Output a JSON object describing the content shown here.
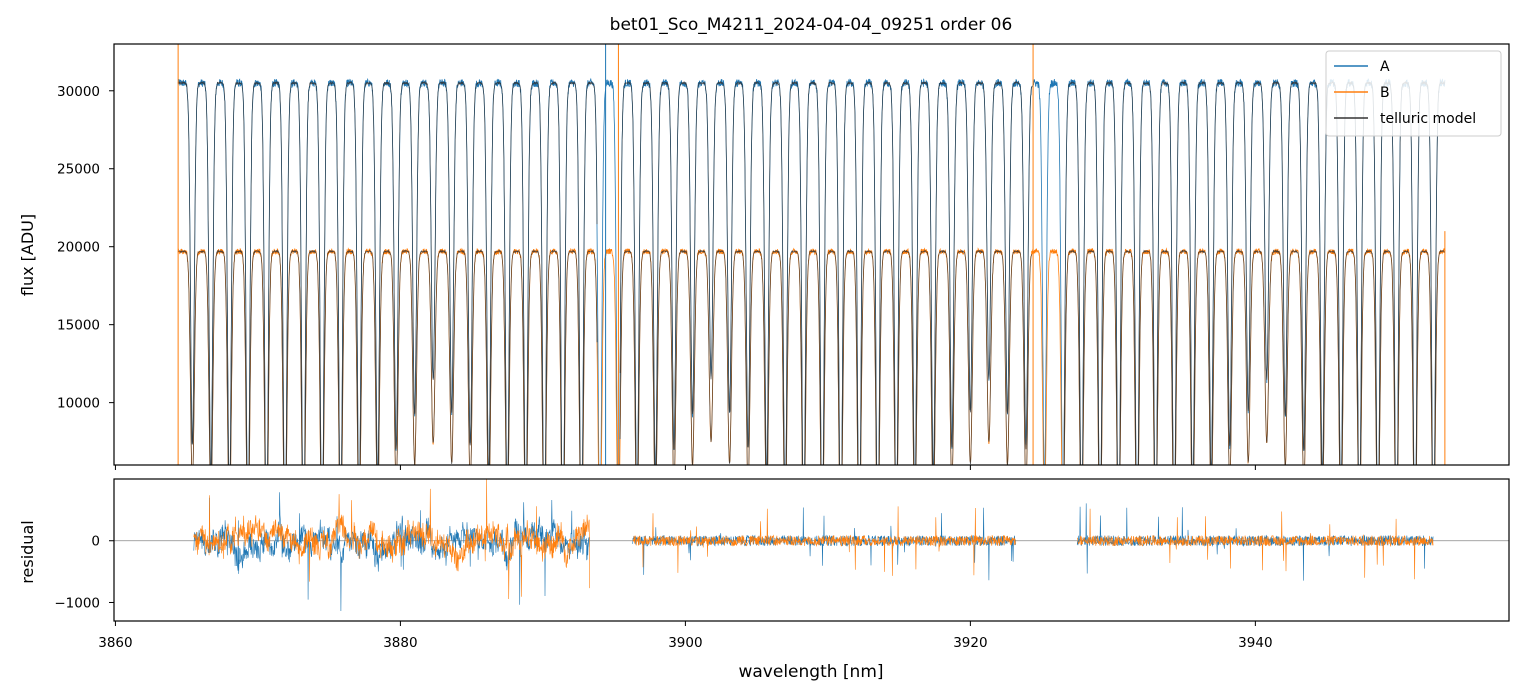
{
  "chart_data": [
    {
      "type": "line",
      "title": "bet01_Sco_M4211_2024-04-04_09251  order 06",
      "xlabel": "",
      "ylabel": "flux [ADU]",
      "xlim": [
        3859.9,
        3957.8
      ],
      "ylim": [
        6000,
        33000
      ],
      "x_ticks": [
        3860,
        3880,
        3900,
        3920,
        3940
      ],
      "y_ticks": [
        10000,
        15000,
        20000,
        25000,
        30000
      ],
      "y_tick_labels": [
        "10000",
        "15000",
        "20000",
        "25000",
        "30000"
      ],
      "legend": {
        "placement": "top-right",
        "entries": [
          "A",
          "B",
          "telluric model"
        ]
      },
      "series": [
        {
          "name": "A",
          "color": "#1f77b4",
          "continuum": 30500,
          "x_start": 3864.4,
          "x_end": 3953.3
        },
        {
          "name": "B",
          "color": "#ff7f0e",
          "continuum": 19700,
          "x_start": 3864.4,
          "x_end": 3953.3
        },
        {
          "name": "telluric model",
          "color": "#333333"
        }
      ],
      "model_gaps": [
        [
          3893.8,
          3895.4
        ],
        [
          3924.3,
          3926.5
        ]
      ],
      "spikes": [
        {
          "series": "B",
          "x": 3864.4,
          "ymin": 6000,
          "ymax": 33000
        },
        {
          "series": "A",
          "x": 3894.4,
          "ymin": 6000,
          "ymax": 33000
        },
        {
          "series": "B",
          "x": 3895.3,
          "ymin": 6000,
          "ymax": 33000
        },
        {
          "series": "B",
          "x": 3924.4,
          "ymin": 6000,
          "ymax": 33000
        },
        {
          "series": "B",
          "x": 3953.3,
          "ymin": 6000,
          "ymax": 21000
        }
      ]
    },
    {
      "type": "line",
      "title": "",
      "xlabel": "wavelength [nm]",
      "ylabel": "residual",
      "xlim": [
        3859.9,
        3957.8
      ],
      "ylim": [
        -1300,
        1000
      ],
      "x_ticks": [
        3860,
        3880,
        3900,
        3920,
        3940
      ],
      "x_tick_labels": [
        "3860",
        "3880",
        "3900",
        "3920",
        "3940"
      ],
      "y_ticks": [
        -1000,
        0
      ],
      "y_tick_labels": [
        "−1000",
        "0"
      ],
      "zero_line": true,
      "segments": [
        {
          "x_start": 3865.5,
          "x_end": 3893.3,
          "amplitude": "large"
        },
        {
          "x_start": 3896.3,
          "x_end": 3923.2,
          "amplitude": "small"
        },
        {
          "x_start": 3927.5,
          "x_end": 3952.5,
          "amplitude": "small"
        }
      ]
    }
  ]
}
